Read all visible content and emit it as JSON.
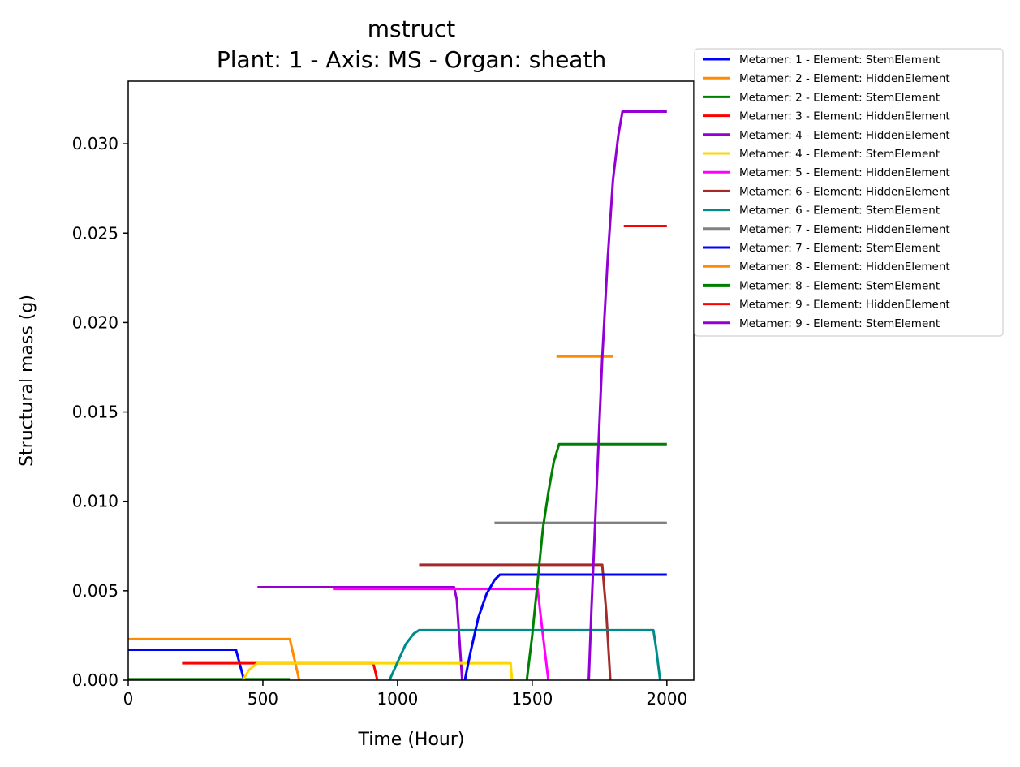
{
  "chart_data": {
    "type": "line",
    "title": "mstruct",
    "subtitle": "Plant: 1 - Axis: MS - Organ: sheath",
    "xlabel": "Time (Hour)",
    "ylabel": "Structural mass (g)",
    "xlim": [
      0,
      2100
    ],
    "ylim": [
      0,
      0.0335
    ],
    "xticks": [
      "0",
      "500",
      "1000",
      "1500",
      "2000"
    ],
    "xtick_values": [
      0,
      500,
      1000,
      1500,
      2000
    ],
    "yticks": [
      "0.000",
      "0.005",
      "0.010",
      "0.015",
      "0.020",
      "0.025",
      "0.030"
    ],
    "ytick_values": [
      0,
      0.005,
      0.01,
      0.015,
      0.02,
      0.025,
      0.03
    ],
    "grid": false,
    "legend_position": "outside-top-right",
    "series": [
      {
        "name": "Metamer: 1 - Element: StemElement",
        "color": "#0000ff",
        "points": [
          [
            0,
            0.0017
          ],
          [
            400,
            0.0017
          ],
          [
            430,
            0
          ]
        ]
      },
      {
        "name": "Metamer: 2 - Element: HiddenElement",
        "color": "#ff8c00",
        "points": [
          [
            0,
            0.0023
          ],
          [
            600,
            0.0023
          ],
          [
            635,
            0
          ]
        ]
      },
      {
        "name": "Metamer: 2 - Element: StemElement",
        "color": "#008000",
        "points": [
          [
            0,
            5e-05
          ],
          [
            600,
            5e-05
          ]
        ]
      },
      {
        "name": "Metamer: 3 - Element: HiddenElement",
        "color": "#ff0000",
        "points": [
          [
            200,
            0.00095
          ],
          [
            910,
            0.00095
          ],
          [
            925,
            0
          ]
        ]
      },
      {
        "name": "Metamer: 4 - Element: HiddenElement",
        "color": "#9400d3",
        "points": [
          [
            480,
            0.0052
          ],
          [
            1210,
            0.0052
          ],
          [
            1220,
            0.0045
          ],
          [
            1240,
            0
          ]
        ]
      },
      {
        "name": "Metamer: 4 - Element: StemElement",
        "color": "#ffd700",
        "points": [
          [
            425,
            0
          ],
          [
            450,
            0.0006
          ],
          [
            480,
            0.00095
          ],
          [
            1420,
            0.00095
          ],
          [
            1425,
            0
          ]
        ]
      },
      {
        "name": "Metamer: 5 - Element: HiddenElement",
        "color": "#ff00ff",
        "points": [
          [
            760,
            0.0051
          ],
          [
            1520,
            0.0051
          ],
          [
            1540,
            0.0025
          ],
          [
            1560,
            0
          ]
        ]
      },
      {
        "name": "Metamer: 6 - Element: HiddenElement",
        "color": "#a52a2a",
        "points": [
          [
            1080,
            0.00645
          ],
          [
            1760,
            0.00645
          ],
          [
            1775,
            0.0038
          ],
          [
            1790,
            0
          ]
        ]
      },
      {
        "name": "Metamer: 6 - Element: StemElement",
        "color": "#008b8b",
        "points": [
          [
            970,
            0
          ],
          [
            1000,
            0.001
          ],
          [
            1030,
            0.002
          ],
          [
            1060,
            0.0026
          ],
          [
            1080,
            0.0028
          ],
          [
            1950,
            0.0028
          ],
          [
            1960,
            0.0018
          ],
          [
            1975,
            0
          ]
        ]
      },
      {
        "name": "Metamer: 7 - Element: HiddenElement",
        "color": "#808080",
        "points": [
          [
            1360,
            0.0088
          ],
          [
            2000,
            0.0088
          ]
        ]
      },
      {
        "name": "Metamer: 7 - Element: StemElement",
        "color": "#0000ff",
        "points": [
          [
            1250,
            0
          ],
          [
            1270,
            0.0015
          ],
          [
            1300,
            0.0035
          ],
          [
            1330,
            0.0048
          ],
          [
            1360,
            0.0056
          ],
          [
            1380,
            0.0059
          ],
          [
            2000,
            0.0059
          ]
        ]
      },
      {
        "name": "Metamer: 8 - Element: HiddenElement",
        "color": "#ff8c00",
        "points": [
          [
            1590,
            0.0181
          ],
          [
            1800,
            0.0181
          ]
        ]
      },
      {
        "name": "Metamer: 8 - Element: StemElement",
        "color": "#008000",
        "points": [
          [
            1480,
            0
          ],
          [
            1500,
            0.0025
          ],
          [
            1520,
            0.0055
          ],
          [
            1540,
            0.0085
          ],
          [
            1560,
            0.0105
          ],
          [
            1580,
            0.0122
          ],
          [
            1600,
            0.0132
          ],
          [
            2000,
            0.0132
          ]
        ]
      },
      {
        "name": "Metamer: 9 - Element: HiddenElement",
        "color": "#ff0000",
        "points": [
          [
            1840,
            0.0254
          ],
          [
            2000,
            0.0254
          ]
        ]
      },
      {
        "name": "Metamer: 9 - Element: StemElement",
        "color": "#9400d3",
        "points": [
          [
            1710,
            0
          ],
          [
            1720,
            0.004
          ],
          [
            1740,
            0.011
          ],
          [
            1760,
            0.018
          ],
          [
            1780,
            0.0235
          ],
          [
            1800,
            0.028
          ],
          [
            1820,
            0.0305
          ],
          [
            1835,
            0.0318
          ],
          [
            2000,
            0.0318
          ]
        ]
      }
    ]
  }
}
